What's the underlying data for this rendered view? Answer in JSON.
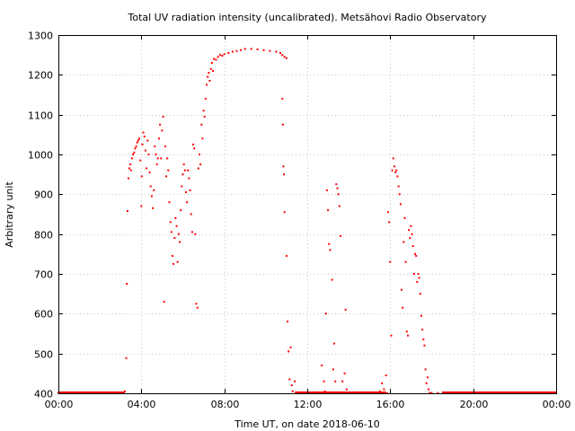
{
  "chart_data": {
    "type": "scatter",
    "title": "Total UV radiation intensity (uncalibrated). Metsähovi Radio Observatory",
    "xlabel": "Time UT, on date 2018-06-10",
    "ylabel": "Arbitrary unit",
    "xlim": [
      0,
      24
    ],
    "ylim": [
      400,
      1300
    ],
    "grid": true,
    "x_ticks": [
      {
        "value": 0,
        "label": "00:00"
      },
      {
        "value": 4,
        "label": "04:00"
      },
      {
        "value": 8,
        "label": "08:00"
      },
      {
        "value": 12,
        "label": "12:00"
      },
      {
        "value": 16,
        "label": "16:00"
      },
      {
        "value": 20,
        "label": "20:00"
      },
      {
        "value": 24,
        "label": "00:00"
      }
    ],
    "y_ticks": [
      400,
      500,
      600,
      700,
      800,
      900,
      1000,
      1100,
      1200,
      1300
    ],
    "marker_color": "#ff0000",
    "series": [
      {
        "points": [
          [
            0.0,
            401
          ],
          [
            0.3,
            401
          ],
          [
            0.6,
            401
          ],
          [
            0.9,
            401
          ],
          [
            1.2,
            401
          ],
          [
            1.5,
            401
          ],
          [
            1.8,
            401
          ],
          [
            2.1,
            401
          ],
          [
            2.4,
            401
          ],
          [
            2.7,
            401
          ],
          [
            3.0,
            401
          ],
          [
            3.2,
            405
          ],
          [
            3.27,
            488
          ],
          [
            3.3,
            675
          ],
          [
            3.33,
            858
          ],
          [
            3.38,
            940
          ],
          [
            3.42,
            965
          ],
          [
            3.47,
            975
          ],
          [
            3.5,
            960
          ],
          [
            3.55,
            990
          ],
          [
            3.6,
            1000
          ],
          [
            3.65,
            1005
          ],
          [
            3.7,
            1015
          ],
          [
            3.75,
            1020
          ],
          [
            3.8,
            1030
          ],
          [
            3.85,
            1035
          ],
          [
            3.9,
            1040
          ],
          [
            3.95,
            985
          ],
          [
            4.0,
            870
          ],
          [
            4.02,
            945
          ],
          [
            4.05,
            1025
          ],
          [
            4.1,
            1055
          ],
          [
            4.15,
            1045
          ],
          [
            4.2,
            1010
          ],
          [
            4.25,
            965
          ],
          [
            4.3,
            1035
          ],
          [
            4.35,
            1000
          ],
          [
            4.4,
            955
          ],
          [
            4.45,
            920
          ],
          [
            4.5,
            895
          ],
          [
            4.55,
            865
          ],
          [
            4.6,
            910
          ],
          [
            4.65,
            1020
          ],
          [
            4.7,
            1000
          ],
          [
            4.75,
            975
          ],
          [
            4.8,
            990
          ],
          [
            4.85,
            1040
          ],
          [
            4.9,
            1075
          ],
          [
            4.95,
            990
          ],
          [
            5.0,
            1060
          ],
          [
            5.05,
            1095
          ],
          [
            5.1,
            630
          ],
          [
            5.15,
            1020
          ],
          [
            5.2,
            945
          ],
          [
            5.25,
            990
          ],
          [
            5.3,
            960
          ],
          [
            5.35,
            880
          ],
          [
            5.4,
            830
          ],
          [
            5.45,
            805
          ],
          [
            5.5,
            745
          ],
          [
            5.55,
            725
          ],
          [
            5.6,
            790
          ],
          [
            5.65,
            840
          ],
          [
            5.7,
            820
          ],
          [
            5.75,
            730
          ],
          [
            5.8,
            800
          ],
          [
            5.85,
            780
          ],
          [
            5.9,
            860
          ],
          [
            5.95,
            920
          ],
          [
            6.0,
            950
          ],
          [
            6.05,
            975
          ],
          [
            6.1,
            960
          ],
          [
            6.15,
            905
          ],
          [
            6.2,
            880
          ],
          [
            6.25,
            960
          ],
          [
            6.3,
            940
          ],
          [
            6.35,
            910
          ],
          [
            6.4,
            850
          ],
          [
            6.45,
            805
          ],
          [
            6.5,
            1025
          ],
          [
            6.55,
            1015
          ],
          [
            6.6,
            800
          ],
          [
            6.65,
            625
          ],
          [
            6.7,
            615
          ],
          [
            6.75,
            965
          ],
          [
            6.8,
            1000
          ],
          [
            6.85,
            975
          ],
          [
            6.9,
            1075
          ],
          [
            6.95,
            1040
          ],
          [
            7.0,
            1110
          ],
          [
            7.05,
            1095
          ],
          [
            7.1,
            1140
          ],
          [
            7.15,
            1175
          ],
          [
            7.2,
            1195
          ],
          [
            7.25,
            1205
          ],
          [
            7.3,
            1185
          ],
          [
            7.35,
            1215
          ],
          [
            7.4,
            1230
          ],
          [
            7.45,
            1210
          ],
          [
            7.5,
            1240
          ],
          [
            7.6,
            1238
          ],
          [
            7.7,
            1245
          ],
          [
            7.8,
            1250
          ],
          [
            7.9,
            1248
          ],
          [
            8.0,
            1252
          ],
          [
            8.2,
            1255
          ],
          [
            8.4,
            1258
          ],
          [
            8.6,
            1260
          ],
          [
            8.8,
            1262
          ],
          [
            9.0,
            1265
          ],
          [
            9.3,
            1265
          ],
          [
            9.6,
            1264
          ],
          [
            9.9,
            1262
          ],
          [
            10.2,
            1260
          ],
          [
            10.5,
            1258
          ],
          [
            10.7,
            1255
          ],
          [
            10.8,
            1250
          ],
          [
            10.9,
            1245
          ],
          [
            11.0,
            1242
          ],
          [
            10.8,
            1140
          ],
          [
            10.82,
            1075
          ],
          [
            10.85,
            970
          ],
          [
            10.88,
            950
          ],
          [
            10.9,
            855
          ],
          [
            11.0,
            745
          ],
          [
            11.05,
            580
          ],
          [
            11.1,
            505
          ],
          [
            11.15,
            435
          ],
          [
            11.2,
            515
          ],
          [
            11.25,
            420
          ],
          [
            11.3,
            405
          ],
          [
            11.4,
            430
          ],
          [
            11.5,
            402
          ],
          [
            11.7,
            401
          ],
          [
            12.0,
            401
          ],
          [
            12.3,
            401
          ],
          [
            12.6,
            401
          ],
          [
            12.7,
            470
          ],
          [
            12.8,
            430
          ],
          [
            12.85,
            405
          ],
          [
            12.9,
            600
          ],
          [
            12.95,
            910
          ],
          [
            13.0,
            860
          ],
          [
            13.05,
            775
          ],
          [
            13.1,
            760
          ],
          [
            13.15,
            400
          ],
          [
            13.2,
            685
          ],
          [
            13.25,
            460
          ],
          [
            13.3,
            525
          ],
          [
            13.35,
            430
          ],
          [
            13.4,
            925
          ],
          [
            13.45,
            915
          ],
          [
            13.5,
            900
          ],
          [
            13.55,
            870
          ],
          [
            13.6,
            795
          ],
          [
            13.65,
            400
          ],
          [
            13.7,
            430
          ],
          [
            13.8,
            450
          ],
          [
            13.85,
            610
          ],
          [
            13.9,
            410
          ],
          [
            14.0,
            401
          ],
          [
            14.4,
            401
          ],
          [
            14.8,
            401
          ],
          [
            15.2,
            401
          ],
          [
            15.5,
            405
          ],
          [
            15.6,
            425
          ],
          [
            15.7,
            410
          ],
          [
            15.8,
            445
          ],
          [
            15.85,
            400
          ],
          [
            15.9,
            855
          ],
          [
            15.95,
            830
          ],
          [
            16.0,
            730
          ],
          [
            16.05,
            545
          ],
          [
            16.1,
            960
          ],
          [
            16.15,
            990
          ],
          [
            16.2,
            970
          ],
          [
            16.25,
            955
          ],
          [
            16.3,
            960
          ],
          [
            16.35,
            945
          ],
          [
            16.4,
            920
          ],
          [
            16.45,
            900
          ],
          [
            16.5,
            875
          ],
          [
            16.55,
            660
          ],
          [
            16.6,
            615
          ],
          [
            16.65,
            780
          ],
          [
            16.7,
            840
          ],
          [
            16.75,
            730
          ],
          [
            16.8,
            555
          ],
          [
            16.85,
            545
          ],
          [
            16.9,
            810
          ],
          [
            16.95,
            790
          ],
          [
            17.0,
            820
          ],
          [
            17.05,
            800
          ],
          [
            17.1,
            770
          ],
          [
            17.15,
            700
          ],
          [
            17.2,
            750
          ],
          [
            17.25,
            745
          ],
          [
            17.3,
            680
          ],
          [
            17.35,
            700
          ],
          [
            17.4,
            690
          ],
          [
            17.45,
            650
          ],
          [
            17.5,
            595
          ],
          [
            17.55,
            560
          ],
          [
            17.6,
            535
          ],
          [
            17.65,
            520
          ],
          [
            17.7,
            460
          ],
          [
            17.75,
            425
          ],
          [
            17.8,
            440
          ],
          [
            17.85,
            410
          ],
          [
            17.9,
            401
          ],
          [
            18.0,
            401
          ],
          [
            18.3,
            401
          ],
          [
            18.6,
            401
          ],
          [
            19.0,
            401
          ],
          [
            19.5,
            401
          ],
          [
            20.0,
            401
          ],
          [
            20.5,
            401
          ],
          [
            21.0,
            401
          ],
          [
            21.5,
            401
          ],
          [
            22.0,
            401
          ],
          [
            22.5,
            401
          ],
          [
            23.0,
            401
          ],
          [
            23.5,
            401
          ],
          [
            24.0,
            401
          ]
        ]
      }
    ]
  }
}
